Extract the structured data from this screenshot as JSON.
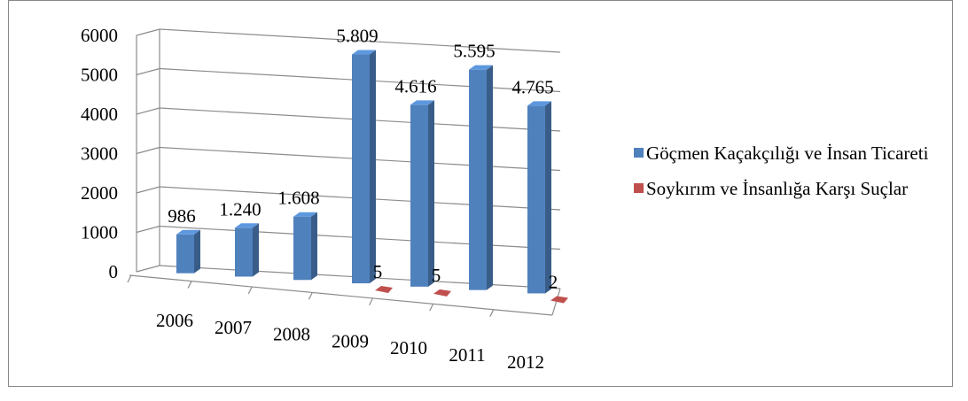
{
  "chart_data": {
    "type": "bar",
    "categories": [
      "2006",
      "2007",
      "2008",
      "2009",
      "2010",
      "2011",
      "2012"
    ],
    "series": [
      {
        "name": "Göçmen Kaçakçılığı ve İnsan Ticareti",
        "values": [
          986,
          1240,
          1608,
          5809,
          4616,
          5595,
          4765
        ],
        "labels": [
          "986",
          "1.240",
          "1.608",
          "5.809",
          "4.616",
          "5.595",
          "4.765"
        ],
        "color": "#4f81bd"
      },
      {
        "name": "Soykırım ve İnsanlığa Karşı Suçlar",
        "values": [
          0,
          0,
          0,
          5,
          5,
          0,
          2
        ],
        "labels": [
          "",
          "",
          "",
          "5",
          "5",
          "",
          "2"
        ],
        "color": "#c0504d"
      }
    ],
    "yticks": [
      "0",
      "1000",
      "2000",
      "3000",
      "4000",
      "5000",
      "6000"
    ],
    "ylim": [
      0,
      6000
    ],
    "legend_position": "right",
    "grid": true,
    "style": "3d-column"
  },
  "legend": {
    "items": [
      {
        "label": "Göçmen Kaçakçılığı ve İnsan Ticareti",
        "color": "#4f81bd"
      },
      {
        "label": "Soykırım ve İnsanlığa Karşı Suçlar",
        "color": "#c0504d"
      }
    ]
  }
}
